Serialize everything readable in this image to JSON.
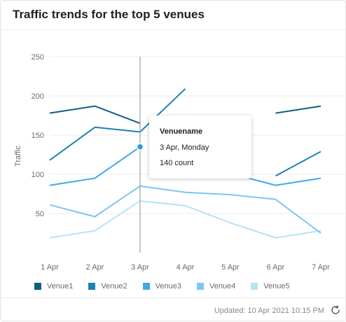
{
  "card": {
    "title": "Traffic trends for the top 5 venues",
    "updated": "Updated: 10 Apr 2021 10:15 PM"
  },
  "icons": {
    "refresh": "refresh-icon"
  },
  "tooltip": {
    "title": "Venuename",
    "date": "3 Apr, Monday",
    "value": "140 count"
  },
  "chart_data": {
    "type": "line",
    "title": "Traffic trends for the top 5 venues",
    "ylabel": "Traffic",
    "xlabel": "",
    "categories": [
      "1 Apr",
      "2 Apr",
      "3 Apr",
      "4 Apr",
      "5 Apr",
      "6 Apr",
      "7 Apr"
    ],
    "yticks": [
      50,
      100,
      150,
      200,
      250
    ],
    "ylim": [
      0,
      250
    ],
    "grid": true,
    "legend_position": "bottom",
    "hover_category": "3 Apr",
    "series": [
      {
        "name": "Venue1",
        "color": "#115e80",
        "values": [
          178,
          187,
          165,
          null,
          null,
          178,
          187
        ]
      },
      {
        "name": "Venue2",
        "color": "#1c82b6",
        "values": [
          118,
          160,
          154,
          209,
          null,
          98,
          129
        ]
      },
      {
        "name": "Venue3",
        "color": "#40a8e8",
        "values": [
          86,
          95,
          135,
          null,
          101,
          86,
          95
        ]
      },
      {
        "name": "Venue4",
        "color": "#7cc6f0",
        "values": [
          61,
          46,
          85,
          77,
          74,
          68,
          25
        ]
      },
      {
        "name": "Venue5",
        "color": "#b7e2f8",
        "values": [
          19,
          28,
          66,
          60,
          38,
          19,
          28
        ]
      }
    ]
  }
}
